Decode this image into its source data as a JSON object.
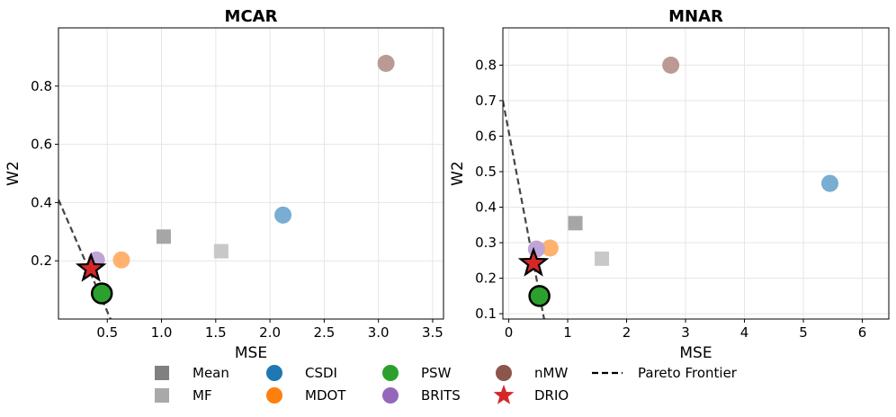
{
  "chart_data": [
    {
      "type": "scatter",
      "title": "MCAR",
      "xlabel": "MSE",
      "ylabel": "W2",
      "xlim": [
        0.05,
        3.6
      ],
      "ylim": [
        0.0,
        1.0
      ],
      "xticks": [
        0.5,
        1.0,
        1.5,
        2.0,
        2.5,
        3.0,
        3.5
      ],
      "xtick_labels": [
        "0.5",
        "1.0",
        "1.5",
        "2.0",
        "2.5",
        "3.0",
        "3.5"
      ],
      "yticks": [
        0.2,
        0.4,
        0.6,
        0.8
      ],
      "ytick_labels": [
        "0.2",
        "0.4",
        "0.6",
        "0.8"
      ],
      "grid": true,
      "series": [
        {
          "name": "Mean",
          "x": 1.02,
          "y": 0.283
        },
        {
          "name": "MF",
          "x": 1.55,
          "y": 0.233
        },
        {
          "name": "CSDI",
          "x": 2.12,
          "y": 0.357
        },
        {
          "name": "MDOT",
          "x": 0.63,
          "y": 0.203
        },
        {
          "name": "PSW",
          "x": 0.45,
          "y": 0.088
        },
        {
          "name": "BRITS",
          "x": 0.4,
          "y": 0.203
        },
        {
          "name": "nMW",
          "x": 3.07,
          "y": 0.878
        },
        {
          "name": "DRIO",
          "x": 0.35,
          "y": 0.173
        }
      ],
      "pareto_frontier": [
        [
          0.05,
          0.41
        ],
        [
          0.53,
          0.0
        ]
      ]
    },
    {
      "type": "scatter",
      "title": "MNAR",
      "xlabel": "MSE",
      "ylabel": "W2",
      "xlim": [
        -0.1,
        6.45
      ],
      "ylim": [
        0.085,
        0.905
      ],
      "xticks": [
        0,
        1,
        2,
        3,
        4,
        5,
        6
      ],
      "xtick_labels": [
        "0",
        "1",
        "2",
        "3",
        "4",
        "5",
        "6"
      ],
      "yticks": [
        0.1,
        0.2,
        0.3,
        0.4,
        0.5,
        0.6,
        0.7,
        0.8
      ],
      "ytick_labels": [
        "0.1",
        "0.2",
        "0.3",
        "0.4",
        "0.5",
        "0.6",
        "0.7",
        "0.8"
      ],
      "grid": true,
      "series": [
        {
          "name": "Mean",
          "x": 1.13,
          "y": 0.355
        },
        {
          "name": "MF",
          "x": 1.58,
          "y": 0.255
        },
        {
          "name": "CSDI",
          "x": 5.45,
          "y": 0.467
        },
        {
          "name": "MDOT",
          "x": 0.7,
          "y": 0.285
        },
        {
          "name": "PSW",
          "x": 0.52,
          "y": 0.15
        },
        {
          "name": "BRITS",
          "x": 0.47,
          "y": 0.282
        },
        {
          "name": "nMW",
          "x": 2.75,
          "y": 0.8
        },
        {
          "name": "DRIO",
          "x": 0.42,
          "y": 0.242
        }
      ],
      "pareto_frontier": [
        [
          -0.1,
          0.7
        ],
        [
          0.6,
          0.085
        ]
      ]
    }
  ],
  "legend": {
    "placement": "bottom",
    "entries": [
      {
        "name": "Mean",
        "label": "Mean",
        "marker": "square",
        "color": "#808080"
      },
      {
        "name": "MF",
        "label": "MF",
        "marker": "square",
        "color": "#a9a9a9"
      },
      {
        "name": "CSDI",
        "label": "CSDI",
        "marker": "circle",
        "color": "#1f77b4"
      },
      {
        "name": "MDOT",
        "label": "MDOT",
        "marker": "circle",
        "color": "#ff7f0e"
      },
      {
        "name": "PSW",
        "label": "PSW",
        "marker": "circle",
        "color": "#2ca02c"
      },
      {
        "name": "BRITS",
        "label": "BRITS",
        "marker": "circle",
        "color": "#9467bd"
      },
      {
        "name": "nMW",
        "label": "nMW",
        "marker": "circle",
        "color": "#8c564b"
      },
      {
        "name": "DRIO",
        "label": "DRIO",
        "marker": "star",
        "color": "#d62728"
      },
      {
        "name": "Pareto Frontier",
        "label": "Pareto Frontier",
        "marker": "dashed-line",
        "color": "#000000"
      }
    ]
  },
  "point_styles": {
    "Mean": {
      "marker": "square",
      "color": "#a6a6a6"
    },
    "MF": {
      "marker": "square",
      "color": "#c8c8c8"
    },
    "CSDI": {
      "marker": "circle",
      "color": "#79add2"
    },
    "MDOT": {
      "marker": "circle",
      "color": "#ffb26e"
    },
    "PSW": {
      "marker": "circle-outlined",
      "color": "#2ca02c"
    },
    "BRITS": {
      "marker": "circle",
      "color": "#bea4d7"
    },
    "nMW": {
      "marker": "circle",
      "color": "#ba9a93"
    },
    "DRIO": {
      "marker": "star-outlined",
      "color": "#d62728"
    }
  }
}
